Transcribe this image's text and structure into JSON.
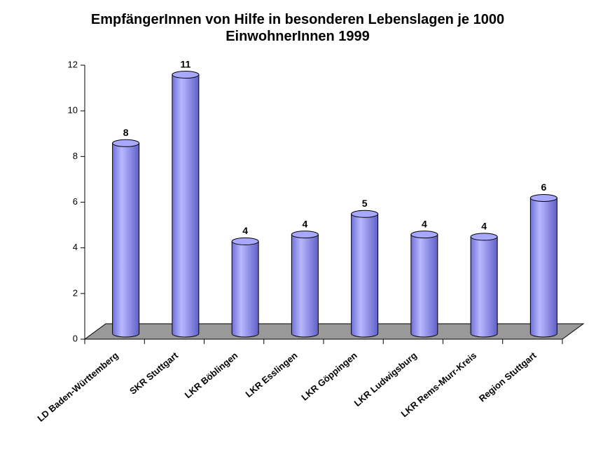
{
  "chart_data": {
    "type": "bar",
    "title": "EmpfängerInnen von Hilfe in besonderen Lebenslagen je 1000 EinwohnerInnen 1999",
    "categories": [
      "LD Baden-Württemberg",
      "SKR Stuttgart",
      "LKR Böblingen",
      "LKR Esslingen",
      "LKR Göppingen",
      "LKR Ludwigsburg",
      "LKR Rems-Murr-Kreis",
      "Region Stuttgart"
    ],
    "values": [
      8.4,
      11.4,
      4.1,
      4.4,
      5.3,
      4.4,
      4.3,
      6.0
    ],
    "value_labels": [
      "8",
      "11",
      "4",
      "4",
      "5",
      "4",
      "4",
      "6"
    ],
    "color": "#9999ff",
    "ylim": [
      0,
      12
    ],
    "yticks": [
      0,
      2,
      4,
      6,
      8,
      10,
      12
    ],
    "grid": false
  }
}
